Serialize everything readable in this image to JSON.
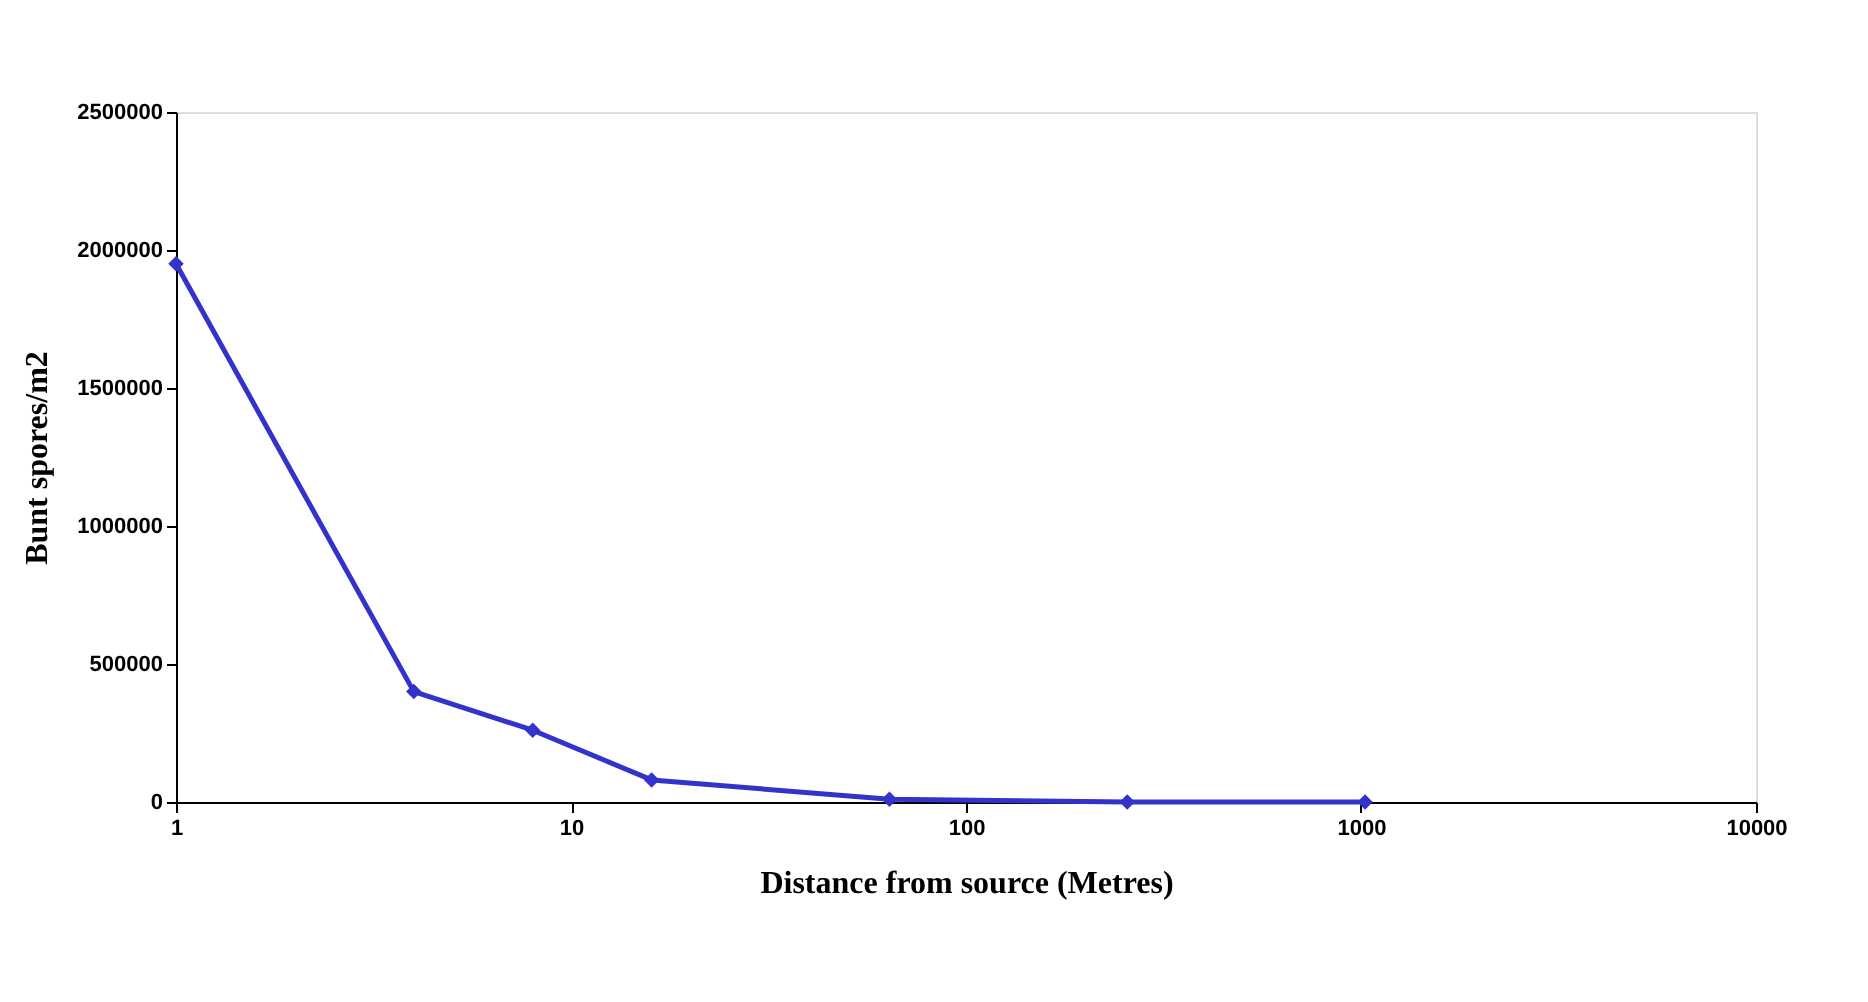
{
  "chart_data": {
    "type": "line",
    "xlabel": "Distance from source (Metres)",
    "ylabel": "Bunt spores/m2",
    "x": [
      1,
      4,
      8,
      16,
      64,
      256,
      1024
    ],
    "series": [
      {
        "color": "#3333cc",
        "values": [
          1950000,
          400000,
          260000,
          80000,
          10000,
          0,
          0
        ]
      }
    ],
    "log": "x",
    "xlim": [
      1,
      10000
    ],
    "xticks": [
      1,
      10,
      100,
      1000,
      10000
    ],
    "ylim": [
      0,
      2500000
    ],
    "yticks": [
      0,
      500000,
      1000000,
      1500000,
      2000000,
      2500000
    ],
    "grid": false,
    "marker": "diamond",
    "line_style": "solid"
  }
}
